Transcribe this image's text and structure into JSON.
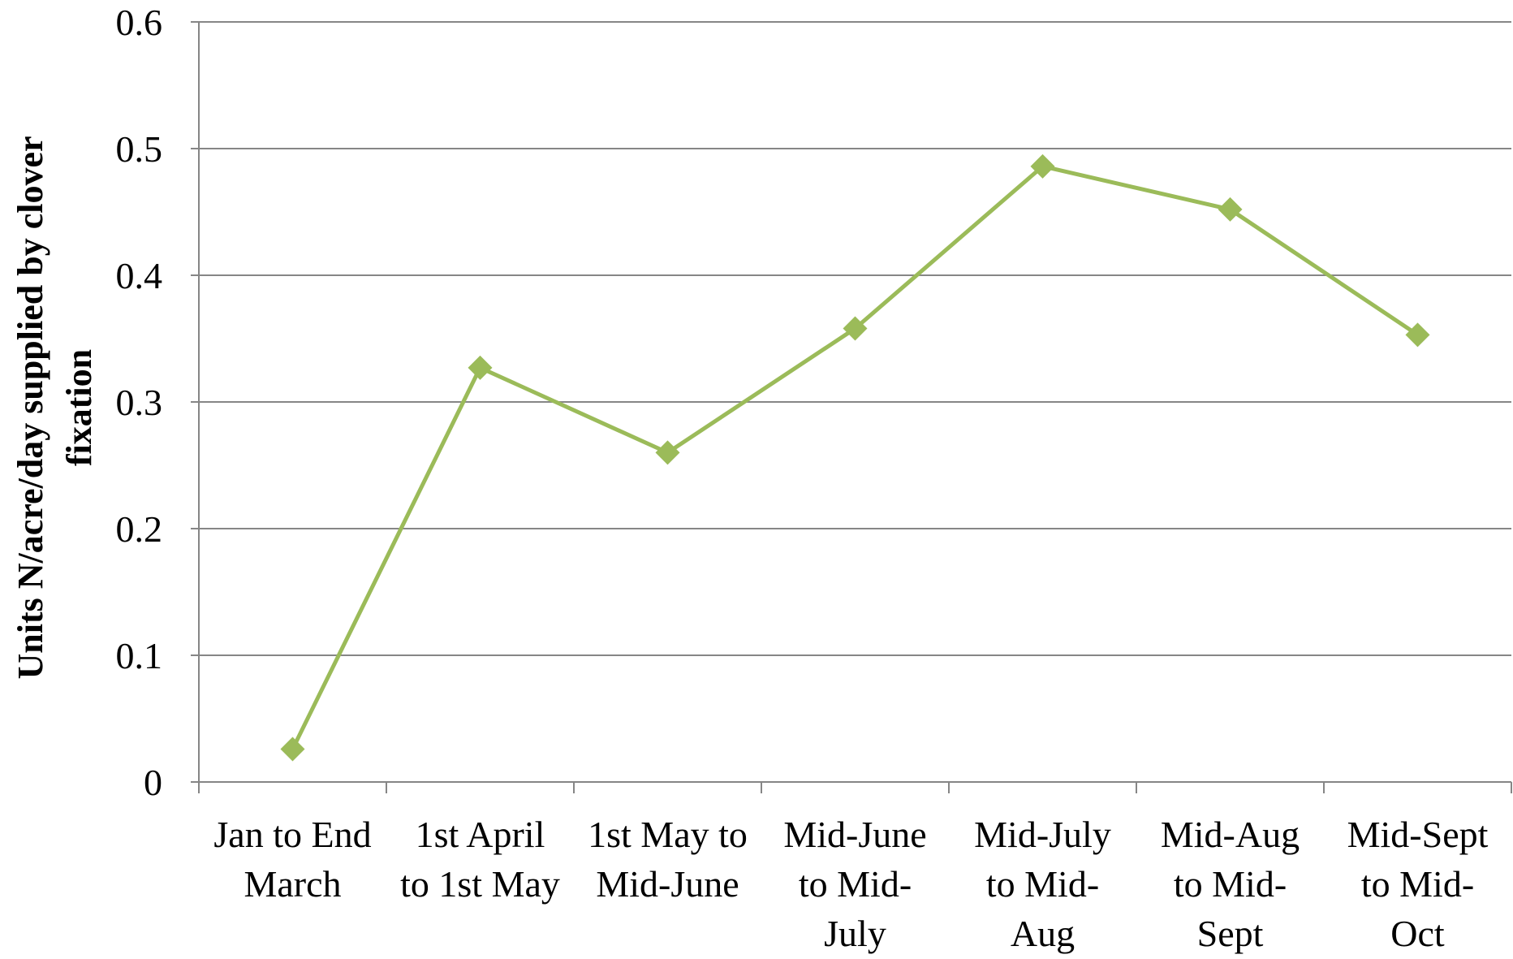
{
  "chart_data": {
    "type": "line",
    "title": "",
    "xlabel": "",
    "ylabel_lines": [
      "Units N/acre/day supplied by clover",
      "fixation"
    ],
    "ylim": [
      0,
      0.6
    ],
    "yticks": [
      0,
      0.1,
      0.2,
      0.3,
      0.4,
      0.5,
      0.6
    ],
    "ytick_labels": [
      "0",
      "0.1",
      "0.2",
      "0.3",
      "0.4",
      "0.5",
      "0.6"
    ],
    "categories": [
      [
        "Jan to End",
        "March"
      ],
      [
        "1st April",
        "to 1st May"
      ],
      [
        "1st May to",
        "Mid-June"
      ],
      [
        "Mid-June",
        "to Mid-",
        "July"
      ],
      [
        "Mid-July",
        "to Mid-",
        "Aug"
      ],
      [
        "Mid-Aug",
        "to Mid-",
        "Sept"
      ],
      [
        "Mid-Sept",
        "to Mid-",
        "Oct"
      ]
    ],
    "series": [
      {
        "values": [
          0.026,
          0.327,
          0.26,
          0.358,
          0.486,
          0.452,
          0.353
        ],
        "color": "#9BBB59",
        "marker": "diamond"
      }
    ],
    "grid": true,
    "legend": "none"
  }
}
